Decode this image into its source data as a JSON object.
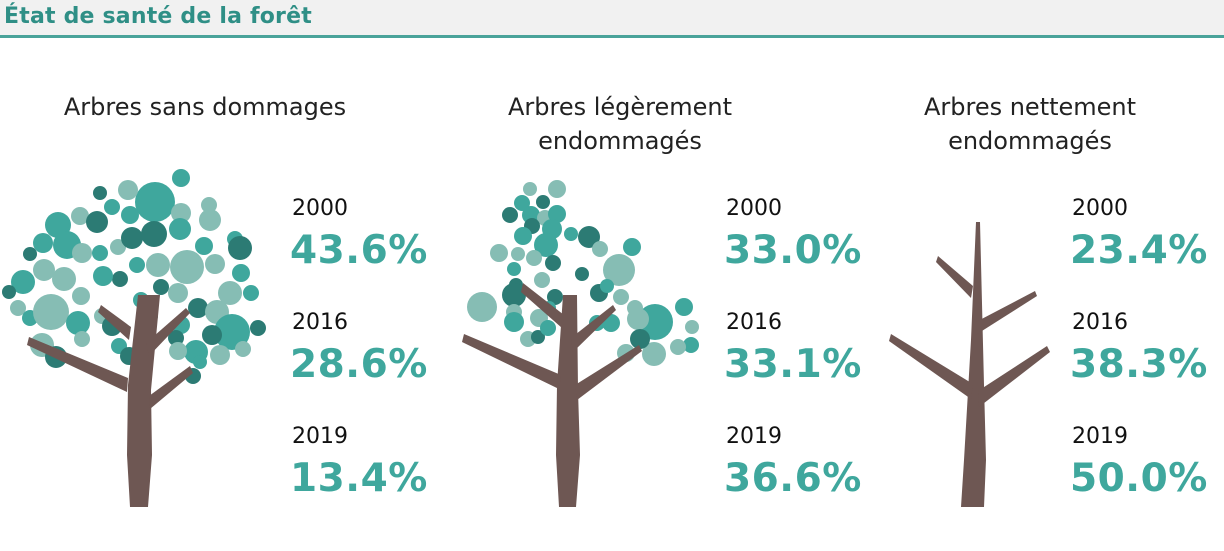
{
  "header": {
    "title": "État de santé de la forêt"
  },
  "colors": {
    "accent": "#3fa79d",
    "trunk": "#6e5753",
    "leaf_dark": "#2c7b74",
    "leaf_mid": "#3fa79d",
    "leaf_light": "#86bdb4"
  },
  "chart_data": [
    {
      "type": "table",
      "title": "Arbres sans dommages",
      "x": [
        "2000",
        "2016",
        "2019"
      ],
      "values": [
        43.6,
        28.6,
        13.4
      ],
      "labels": [
        "43.6%",
        "28.6%",
        "13.4%"
      ]
    },
    {
      "type": "table",
      "title": "Arbres légèrement endommagés",
      "x": [
        "2000",
        "2016",
        "2019"
      ],
      "values": [
        33.0,
        33.1,
        36.6
      ],
      "labels": [
        "33.0%",
        "33.1%",
        "36.6%"
      ]
    },
    {
      "type": "table",
      "title": "Arbres nettement endommagés",
      "x": [
        "2000",
        "2016",
        "2019"
      ],
      "values": [
        23.4,
        38.3,
        50.0
      ],
      "labels": [
        "23.4%",
        "38.3%",
        "50.0%"
      ]
    }
  ],
  "panels": [
    {
      "title_lines": [
        "Arbres sans dommages"
      ],
      "icon": "healthy-tree-icon"
    },
    {
      "title_lines": [
        "Arbres légèrement",
        "endommagés"
      ],
      "icon": "lightly-damaged-tree-icon"
    },
    {
      "title_lines": [
        "Arbres nettement",
        "endommagés"
      ],
      "icon": "bare-tree-icon"
    }
  ]
}
